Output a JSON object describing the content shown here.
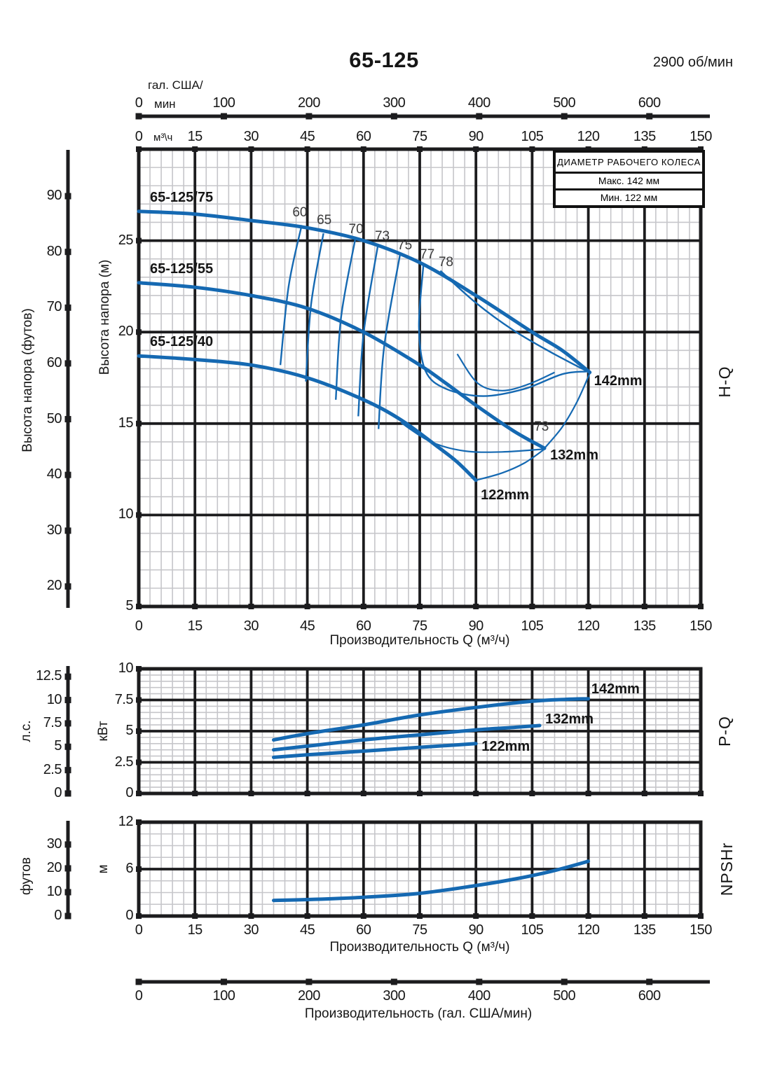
{
  "page": {
    "title": "65-125",
    "rpm": "2900 об/мин"
  },
  "colors": {
    "curve": "#1569b2",
    "grid_major": "#1c1c1e",
    "grid_minor": "#c6c6ca",
    "text": "#161616"
  },
  "top_axis": {
    "unit_line1": "гал. США/",
    "unit_line2": "мин",
    "m3h_unit": "м³\\ч",
    "gal_ticks": [
      "0",
      "100",
      "200",
      "300",
      "400",
      "500",
      "600"
    ]
  },
  "gal_axis": {
    "ticks": [
      "0",
      "100",
      "200",
      "300",
      "400",
      "500",
      "600"
    ],
    "label": "Производительность (гал. США/мин)"
  },
  "legend": {
    "title": "ДИАМЕТР РАБОЧЕГО КОЛЕСА",
    "max": "Макс. 142 мм",
    "min": "Мин. 122 мм"
  },
  "chart_data": [
    {
      "id": "hq",
      "type": "line",
      "right_label": "H-Q",
      "x": {
        "min": 0,
        "max": 150,
        "major": 15,
        "minor": 3,
        "tick_labels": [
          "0",
          "15",
          "30",
          "45",
          "60",
          "75",
          "90",
          "105",
          "120",
          "135",
          "150"
        ],
        "label": "Производительность Q (м³/ч)"
      },
      "y": {
        "min": 5,
        "max": 30,
        "major": 5,
        "minor": 1,
        "tick_values": [
          25,
          20,
          15,
          10,
          5
        ],
        "tick_labels": [
          "25",
          "20",
          "15",
          "10",
          "5"
        ],
        "label": "Высота напора (м)"
      },
      "y2": {
        "unit": "Высота напора (футов)",
        "ticks": [
          90,
          80,
          70,
          60,
          50,
          40,
          30,
          20
        ]
      },
      "series": [
        {
          "name": "65-125/75",
          "impeller": "142mm",
          "points": [
            [
              0,
              26.6
            ],
            [
              15,
              26.45
            ],
            [
              30,
              26.1
            ],
            [
              45,
              25.7
            ],
            [
              60,
              25.0
            ],
            [
              75,
              23.8
            ],
            [
              90,
              22.0
            ],
            [
              105,
              20.0
            ],
            [
              113,
              19.0
            ],
            [
              120.4,
              17.8
            ]
          ]
        },
        {
          "name": "65-125/55",
          "impeller": "132mm",
          "points": [
            [
              0,
              22.7
            ],
            [
              15,
              22.45
            ],
            [
              30,
              22.0
            ],
            [
              45,
              21.3
            ],
            [
              60,
              20.0
            ],
            [
              75,
              18.2
            ],
            [
              82,
              17.2
            ],
            [
              90,
              16.0
            ],
            [
              100,
              14.6
            ],
            [
              108.3,
              13.65
            ]
          ]
        },
        {
          "name": "65-125/40",
          "impeller": "122mm",
          "points": [
            [
              0,
              18.7
            ],
            [
              15,
              18.5
            ],
            [
              30,
              18.2
            ],
            [
              45,
              17.5
            ],
            [
              60,
              16.3
            ],
            [
              70,
              15.2
            ],
            [
              80,
              13.7
            ],
            [
              85,
              12.9
            ],
            [
              90,
              11.9
            ]
          ]
        }
      ],
      "efficiency": [
        {
          "label": "60",
          "at": [
            43,
            26.5
          ],
          "points": [
            [
              43.5,
              25.85
            ],
            [
              40,
              22.5
            ],
            [
              37.8,
              18.2
            ]
          ]
        },
        {
          "label": "65",
          "at": [
            49.5,
            26.1
          ],
          "points": [
            [
              49.3,
              25.4
            ],
            [
              46,
              21.5
            ],
            [
              44.6,
              17.3
            ]
          ]
        },
        {
          "label": "70",
          "at": [
            58,
            25.6
          ],
          "points": [
            [
              57.8,
              25.1
            ],
            [
              54,
              20.8
            ],
            [
              52.6,
              16.3
            ]
          ]
        },
        {
          "label": "73",
          "at": [
            65,
            25.2
          ],
          "points": [
            [
              63.8,
              24.7
            ],
            [
              60,
              19.9
            ],
            [
              58.6,
              15.4
            ]
          ]
        },
        {
          "label": "75",
          "at": [
            71,
            24.7
          ],
          "points": [
            [
              69.7,
              24.2
            ],
            [
              65.5,
              19.2
            ],
            [
              64,
              14.7
            ]
          ]
        },
        {
          "label": "77",
          "at": [
            77,
            24.2
          ],
          "points": [
            [
              76,
              23.7
            ],
            [
              74.8,
              20.3
            ],
            [
              76.5,
              17.9
            ],
            [
              82,
              16.9
            ],
            [
              92,
              16.5
            ],
            [
              103,
              16.9
            ],
            [
              113,
              17.7
            ],
            [
              119.5,
              17.85
            ]
          ]
        },
        {
          "label": "78",
          "at": [
            82,
            23.8
          ],
          "points": [
            [
              80.5,
              23.35
            ],
            [
              90,
              21.6
            ],
            [
              100,
              20.1
            ],
            [
              110,
              18.9
            ],
            [
              120,
              17.82
            ]
          ]
        }
      ],
      "contours": [
        {
          "points": [
            [
              85,
              18.8
            ],
            [
              90.5,
              17.2
            ],
            [
              97,
              16.8
            ],
            [
              104,
              17.15
            ],
            [
              111,
              17.8
            ]
          ]
        },
        {
          "label": "73",
          "at": [
            107.5,
            14.8
          ],
          "points": [
            [
              70,
              15.05
            ],
            [
              78,
              14.0
            ],
            [
              87,
              13.5
            ],
            [
              97,
              13.45
            ],
            [
              108,
              13.6
            ]
          ]
        },
        {
          "points": [
            [
              90,
              11.9
            ],
            [
              97,
              12.3
            ],
            [
              103,
              12.85
            ],
            [
              108.3,
              13.6
            ]
          ]
        },
        {
          "points": [
            [
              108.3,
              13.65
            ],
            [
              113,
              14.8
            ],
            [
              117,
              16.2
            ],
            [
              120.4,
              17.75
            ]
          ]
        }
      ],
      "point_labels": [
        {
          "text": "142mm",
          "at": [
            121.5,
            17.3
          ],
          "bold": true
        },
        {
          "text": "132mm",
          "at": [
            109.8,
            13.25
          ],
          "bold": true
        },
        {
          "text": "122mm",
          "at": [
            91.3,
            11.05
          ],
          "bold": true
        }
      ]
    },
    {
      "id": "pq",
      "type": "line",
      "right_label": "P-Q",
      "y": {
        "min": 0,
        "max": 10,
        "major": 2.5,
        "minor": 0.5,
        "tick_values": [
          10,
          7.5,
          5,
          2.5,
          0
        ],
        "tick_labels": [
          "10",
          "7.5",
          "5",
          "2.5",
          "0"
        ],
        "label": "кВт"
      },
      "y2": {
        "unit": "л.с.",
        "ticks": [
          12.5,
          10,
          7.5,
          5,
          2.5,
          0
        ]
      },
      "series": [
        {
          "name": "142mm",
          "points": [
            [
              36,
              4.3
            ],
            [
              45,
              4.8
            ],
            [
              60,
              5.5
            ],
            [
              75,
              6.3
            ],
            [
              90,
              6.9
            ],
            [
              105,
              7.4
            ],
            [
              114,
              7.55
            ],
            [
              120,
              7.6
            ]
          ]
        },
        {
          "name": "132mm",
          "points": [
            [
              36,
              3.5
            ],
            [
              45,
              3.8
            ],
            [
              60,
              4.3
            ],
            [
              75,
              4.7
            ],
            [
              90,
              5.1
            ],
            [
              100,
              5.3
            ],
            [
              107,
              5.45
            ]
          ]
        },
        {
          "name": "122mm",
          "points": [
            [
              36,
              2.9
            ],
            [
              45,
              3.1
            ],
            [
              60,
              3.4
            ],
            [
              75,
              3.7
            ],
            [
              85,
              3.9
            ],
            [
              90,
              4.0
            ]
          ]
        }
      ],
      "point_labels": [
        {
          "text": "142mm",
          "at": [
            120.8,
            8.3
          ],
          "bold": true
        },
        {
          "text": "132mm",
          "at": [
            108.5,
            5.9
          ],
          "bold": true
        },
        {
          "text": "122mm",
          "at": [
            91.5,
            3.7
          ],
          "bold": true
        }
      ]
    },
    {
      "id": "npsh",
      "type": "line",
      "right_label": "NPSHr",
      "x": {
        "min": 0,
        "max": 150,
        "major": 15,
        "minor": 3,
        "tick_labels": [
          "0",
          "15",
          "30",
          "45",
          "60",
          "75",
          "90",
          "105",
          "120",
          "135",
          "150"
        ],
        "label": "Производительность Q (м³/ч)"
      },
      "y": {
        "min": 0,
        "max": 12,
        "major": 6,
        "minor": 1.5,
        "tick_values": [
          12,
          6,
          0
        ],
        "tick_labels": [
          "12",
          "6",
          "0"
        ],
        "label": "м"
      },
      "y2": {
        "unit": "футов",
        "ticks": [
          30,
          20,
          10,
          0
        ]
      },
      "series": [
        {
          "name": "NPSHr",
          "points": [
            [
              36,
              2.0
            ],
            [
              45,
              2.1
            ],
            [
              60,
              2.4
            ],
            [
              75,
              2.9
            ],
            [
              90,
              3.9
            ],
            [
              100,
              4.7
            ],
            [
              110,
              5.7
            ],
            [
              120,
              7.0
            ]
          ]
        }
      ]
    }
  ]
}
